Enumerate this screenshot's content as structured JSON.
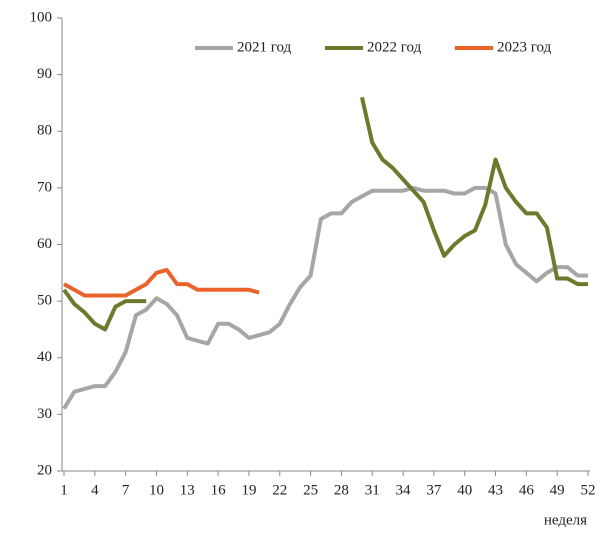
{
  "chart_data": {
    "type": "line",
    "x_label": "неделя",
    "x": [
      1,
      2,
      3,
      4,
      5,
      6,
      7,
      8,
      9,
      10,
      11,
      12,
      13,
      14,
      15,
      16,
      17,
      18,
      19,
      20,
      21,
      22,
      23,
      24,
      25,
      26,
      27,
      28,
      29,
      30,
      31,
      32,
      33,
      34,
      35,
      36,
      37,
      38,
      39,
      40,
      41,
      42,
      43,
      44,
      45,
      46,
      47,
      48,
      49,
      50,
      51,
      52
    ],
    "xlim": [
      1,
      52
    ],
    "xticks": [
      1,
      4,
      7,
      10,
      13,
      16,
      19,
      22,
      25,
      28,
      31,
      34,
      37,
      40,
      43,
      46,
      49,
      52
    ],
    "ylim": [
      20,
      100
    ],
    "yticks": [
      20,
      30,
      40,
      50,
      60,
      70,
      80,
      90,
      100
    ],
    "grid": false,
    "legend": "top",
    "series": [
      {
        "name": "2021 год",
        "color": "#a6a6a6",
        "values": [
          31,
          34,
          34.5,
          35,
          35,
          37.5,
          41,
          47.5,
          48.5,
          50.5,
          49.5,
          47.5,
          43.5,
          43,
          42.5,
          46,
          46,
          45,
          43.5,
          44,
          44.5,
          46,
          49.5,
          52.5,
          54.5,
          64.5,
          65.5,
          65.5,
          67.5,
          68.5,
          69.5,
          69.5,
          69.5,
          69.5,
          70,
          69.5,
          69.5,
          69.5,
          69,
          69,
          70,
          70,
          69,
          60,
          56.5,
          55,
          53.5,
          55,
          56,
          56,
          54.5,
          54.5
        ]
      },
      {
        "name": "2022 год",
        "color": "#6b7a2b",
        "values": [
          52,
          49.5,
          48,
          46,
          45,
          49,
          50,
          50,
          50,
          null,
          null,
          null,
          null,
          null,
          null,
          null,
          null,
          null,
          null,
          null,
          null,
          null,
          null,
          null,
          null,
          null,
          null,
          null,
          null,
          86,
          78,
          75,
          73.5,
          71.5,
          69.5,
          67.5,
          62.5,
          58,
          60,
          61.5,
          62.5,
          67,
          75,
          70,
          67.5,
          65.5,
          65.5,
          63,
          54,
          54,
          53,
          53
        ]
      },
      {
        "name": "2023 год",
        "color": "#e8642a",
        "values": [
          53,
          52,
          51,
          51,
          51,
          51,
          51,
          52,
          53,
          55,
          55.5,
          53,
          53,
          52,
          52,
          52,
          52,
          52,
          52,
          51.5,
          null,
          null,
          null,
          null,
          null,
          null,
          null,
          null,
          null,
          null,
          null,
          null,
          null,
          null,
          null,
          null,
          null,
          null,
          null,
          null,
          null,
          null,
          null,
          null,
          null,
          null,
          null,
          null,
          null,
          null,
          null,
          null
        ]
      }
    ]
  }
}
